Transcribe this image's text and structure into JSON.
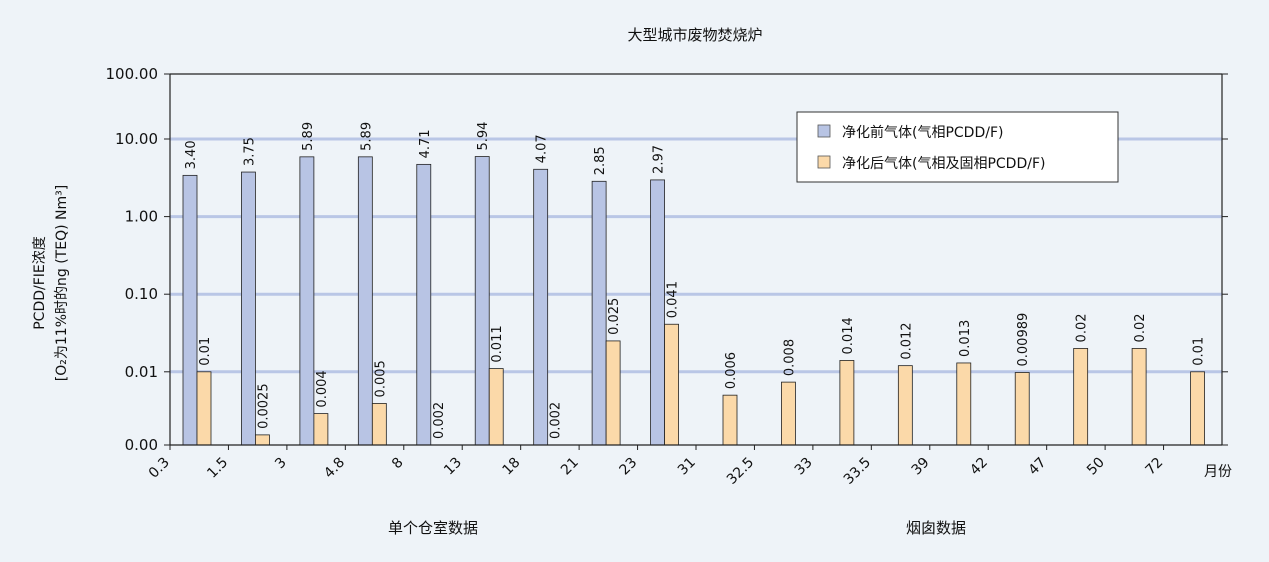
{
  "chart_data": {
    "type": "bar",
    "title": "大型城市废物焚烧炉",
    "ylabel_line1": "PCDD/FIE浓度",
    "ylabel_line2": "[O₂为11%时的ng (TEQ) Nm³]",
    "x_unit": "月份",
    "y_scale": "log",
    "ylim": [
      0.002,
      100
    ],
    "y_ticks": [
      {
        "value": 100,
        "label": "100.00"
      },
      {
        "value": 10,
        "label": "10.00"
      },
      {
        "value": 1,
        "label": "1.00"
      },
      {
        "value": 0.1,
        "label": "0.10"
      },
      {
        "value": 0.01,
        "label": "0.01"
      },
      {
        "value": 0.002,
        "label": "0.00"
      }
    ],
    "grid": true,
    "legend_position": "top-right",
    "categories": [
      "0.3",
      "1.5",
      "3",
      "4.8",
      "8",
      "13",
      "18",
      "21",
      "23",
      "31",
      "32.5",
      "33",
      "33.5",
      "39",
      "42",
      "47",
      "50",
      "72"
    ],
    "groups": [
      {
        "label": "单个仓室数据",
        "from": 0,
        "to": 8
      },
      {
        "label": "烟囱数据",
        "from": 9,
        "to": 17
      }
    ],
    "series": [
      {
        "name": "净化前气体(气相PCDD/F)",
        "color": "#b8c4e4",
        "values": [
          3.4,
          3.75,
          5.89,
          5.89,
          4.71,
          5.94,
          4.07,
          2.85,
          2.97,
          null,
          null,
          null,
          null,
          null,
          null,
          null,
          null,
          null
        ],
        "labels": [
          "3.40",
          "3.75",
          "5.89",
          "5.89",
          "4.71",
          "5.94",
          "4.07",
          "2.85",
          "2.97",
          null,
          null,
          null,
          null,
          null,
          null,
          null,
          null,
          null
        ]
      },
      {
        "name": "净化后气体(气相及固相PCDD/F)",
        "color": "#fbd9a9",
        "values": [
          0.01,
          0.0025,
          0.004,
          0.005,
          0.002,
          0.011,
          0.002,
          0.025,
          0.041,
          0.006,
          0.008,
          0.014,
          0.012,
          0.013,
          0.00989,
          0.02,
          0.02,
          0.01
        ],
        "labels": [
          "0.01",
          "0.0025",
          "0.004",
          "0.005",
          "0.002",
          "0.011",
          "0.002",
          "0.025",
          "0.041",
          "0.006",
          "0.008",
          "0.014",
          "0.012",
          "0.013",
          "0.00989",
          "0.02",
          "0.02",
          "0.01"
        ]
      }
    ]
  }
}
